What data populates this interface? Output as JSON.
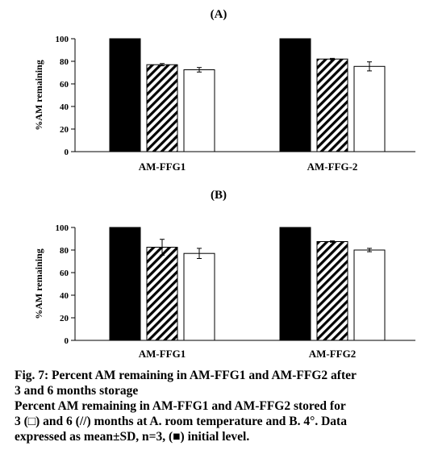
{
  "chart_data": [
    {
      "type": "bar",
      "title": "(A)",
      "ylabel": "%AM remaining",
      "ylim": [
        0,
        100
      ],
      "yticks": [
        0,
        20,
        40,
        60,
        80,
        100
      ],
      "categories": [
        "AM-FFG1",
        "AM-FFG-2"
      ],
      "series": [
        {
          "name": "initial level",
          "fill": "solid-black",
          "values": [
            100,
            100
          ],
          "errors": [
            0,
            0
          ]
        },
        {
          "name": "6 months",
          "fill": "hatched",
          "values": [
            77,
            82
          ],
          "errors": [
            1,
            0.6
          ]
        },
        {
          "name": "3 months",
          "fill": "white",
          "values": [
            72.5,
            75.5
          ],
          "errors": [
            2,
            4
          ]
        }
      ]
    },
    {
      "type": "bar",
      "title": "(B)",
      "ylabel": "%AM remaining",
      "ylim": [
        0,
        100
      ],
      "yticks": [
        0,
        20,
        40,
        60,
        80,
        100
      ],
      "categories": [
        "AM-FFG1",
        "AM-FFG2"
      ],
      "series": [
        {
          "name": "initial level",
          "fill": "solid-black",
          "values": [
            100,
            100
          ],
          "errors": [
            0,
            0
          ]
        },
        {
          "name": "6 months",
          "fill": "hatched",
          "values": [
            82.5,
            87.5
          ],
          "errors": [
            7,
            0.6
          ]
        },
        {
          "name": "3 months",
          "fill": "white",
          "values": [
            77,
            80
          ],
          "errors": [
            4.5,
            1.5
          ]
        }
      ]
    }
  ],
  "caption": {
    "line1": "Fig. 7: Percent AM remaining in AM-FFG1 and AM-FFG2 after",
    "line2": "3 and 6 months storage",
    "line3": "Percent AM remaining in AM-FFG1 and AM-FFG2 stored for",
    "line4": "3 (□) and 6 (//) months at A. room temperature and B. 4°. Data",
    "line5": "expressed as mean±SD, n=3, (■) initial level."
  }
}
